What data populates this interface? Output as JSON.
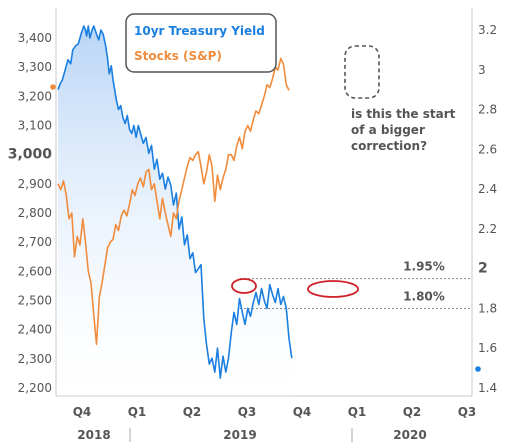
{
  "chart_data": {
    "type": "line",
    "title": "",
    "x_quarter_labels": [
      "Q4",
      "Q1",
      "Q2",
      "Q3",
      "Q4",
      "Q1",
      "Q2",
      "Q3"
    ],
    "x_year_labels": [
      "2018",
      "2019",
      "2020"
    ],
    "left_axis": {
      "ylim": [
        2200,
        3450
      ],
      "ticks": [
        "2,200",
        "2,300",
        "2,400",
        "2,500",
        "2,600",
        "2,700",
        "2,800",
        "2,900",
        "3,000",
        "3,100",
        "3,200",
        "3,300",
        "3,400"
      ]
    },
    "right_axis": {
      "ylim": [
        1.4,
        3.2
      ],
      "ticks": [
        "1.4",
        "1.6",
        "1.8",
        "2",
        "2.2",
        "2.4",
        "2.6",
        "2.8",
        "3",
        "3.2"
      ]
    },
    "series": [
      {
        "name": "10yr Treasury Yield",
        "axis": "right",
        "color": "#1a7fe0",
        "fill": true,
        "x": [
          0,
          0.04,
          0.08,
          0.13,
          0.18,
          0.23,
          0.27,
          0.32,
          0.37,
          0.42,
          0.47,
          0.5,
          0.52,
          0.55,
          0.58,
          0.62,
          0.65,
          0.7,
          0.74,
          0.78,
          0.82,
          0.86,
          0.9,
          0.93,
          0.97,
          1.0,
          1.03,
          1.06,
          1.1,
          1.14,
          1.18,
          1.22,
          1.26,
          1.3,
          1.34,
          1.38,
          1.42,
          1.46,
          1.5,
          1.55,
          1.6,
          1.65,
          1.7,
          1.75,
          1.8,
          1.85,
          1.9,
          1.95,
          2.0,
          2.05,
          2.1,
          2.15,
          2.2,
          2.25,
          2.3,
          2.35,
          2.4,
          2.45,
          2.5,
          2.55,
          2.6,
          2.65,
          2.7,
          2.75,
          2.8,
          2.85,
          2.9,
          2.95,
          3.0,
          3.05,
          3.1,
          3.15,
          3.2,
          3.25,
          3.3,
          3.35,
          3.4,
          3.45,
          3.5,
          3.55,
          3.6,
          3.65,
          3.7,
          3.75,
          3.8,
          3.85,
          3.9,
          3.95,
          4.0,
          4.05,
          4.1,
          4.15,
          4.2,
          4.25
        ],
        "values": [
          2.9,
          2.93,
          2.95,
          3.0,
          3.05,
          3.03,
          3.1,
          3.12,
          3.13,
          3.18,
          3.22,
          3.2,
          3.17,
          3.22,
          3.16,
          3.2,
          3.22,
          3.18,
          3.15,
          3.2,
          3.18,
          3.13,
          3.06,
          2.98,
          3.02,
          2.95,
          2.9,
          2.85,
          2.8,
          2.82,
          2.76,
          2.73,
          2.77,
          2.7,
          2.68,
          2.72,
          2.66,
          2.72,
          2.68,
          2.63,
          2.66,
          2.58,
          2.62,
          2.5,
          2.55,
          2.45,
          2.48,
          2.4,
          2.46,
          2.42,
          2.32,
          2.38,
          2.2,
          2.26,
          2.12,
          2.17,
          2.05,
          2.08,
          1.98,
          2.0,
          2.02,
          1.75,
          1.62,
          1.52,
          1.55,
          1.48,
          1.6,
          1.45,
          1.56,
          1.48,
          1.55,
          1.68,
          1.78,
          1.72,
          1.85,
          1.78,
          1.72,
          1.8,
          1.76,
          1.83,
          1.88,
          1.82,
          1.9,
          1.84,
          1.8,
          1.92,
          1.87,
          1.83,
          1.9,
          1.82,
          1.86,
          1.8,
          1.65,
          1.55
        ]
      },
      {
        "name": "Stocks (S&P)",
        "axis": "left",
        "color": "#f08c3c",
        "fill": false,
        "x": [
          0,
          0.05,
          0.1,
          0.15,
          0.2,
          0.25,
          0.3,
          0.35,
          0.4,
          0.45,
          0.5,
          0.55,
          0.6,
          0.65,
          0.7,
          0.75,
          0.8,
          0.85,
          0.9,
          0.95,
          1.0,
          1.05,
          1.1,
          1.15,
          1.2,
          1.25,
          1.3,
          1.35,
          1.4,
          1.45,
          1.5,
          1.55,
          1.6,
          1.65,
          1.7,
          1.75,
          1.8,
          1.85,
          1.9,
          1.95,
          2.0,
          2.05,
          2.1,
          2.15,
          2.2,
          2.25,
          2.3,
          2.35,
          2.4,
          2.45,
          2.5,
          2.55,
          2.6,
          2.65,
          2.7,
          2.75,
          2.8,
          2.85,
          2.9,
          2.95,
          3.0,
          3.05,
          3.1,
          3.15,
          3.2,
          3.25,
          3.3,
          3.35,
          3.4,
          3.45,
          3.5,
          3.55,
          3.6,
          3.65,
          3.7,
          3.75,
          3.8,
          3.85,
          3.9,
          3.95,
          4.0,
          4.05,
          4.1,
          4.15,
          4.2
        ],
        "values": [
          2900,
          2880,
          2910,
          2860,
          2780,
          2800,
          2650,
          2720,
          2690,
          2780,
          2700,
          2600,
          2560,
          2450,
          2350,
          2510,
          2560,
          2620,
          2680,
          2700,
          2710,
          2760,
          2740,
          2790,
          2810,
          2790,
          2830,
          2880,
          2860,
          2900,
          2920,
          2890,
          2940,
          2950,
          2880,
          2900,
          2840,
          2780,
          2850,
          2800,
          2760,
          2720,
          2800,
          2780,
          2840,
          2880,
          2920,
          2960,
          2990,
          2980,
          3000,
          3010,
          2960,
          2900,
          2940,
          3000,
          2960,
          2840,
          2930,
          2880,
          2920,
          2950,
          3000,
          3000,
          2980,
          3030,
          3060,
          3020,
          3080,
          3100,
          3080,
          3120,
          3150,
          3140,
          3170,
          3200,
          3240,
          3230,
          3260,
          3300,
          3290,
          3330,
          3310,
          3240,
          3220
        ]
      }
    ],
    "reference_lines": [
      {
        "value": 1.95,
        "axis": "right",
        "label": "1.95%"
      },
      {
        "value": 1.8,
        "axis": "right",
        "label": "1.80%"
      }
    ],
    "annotation": {
      "lines": [
        "is this the start",
        "of a bigger",
        "correction?"
      ]
    },
    "legend_placement": "top-center",
    "grid": false
  }
}
